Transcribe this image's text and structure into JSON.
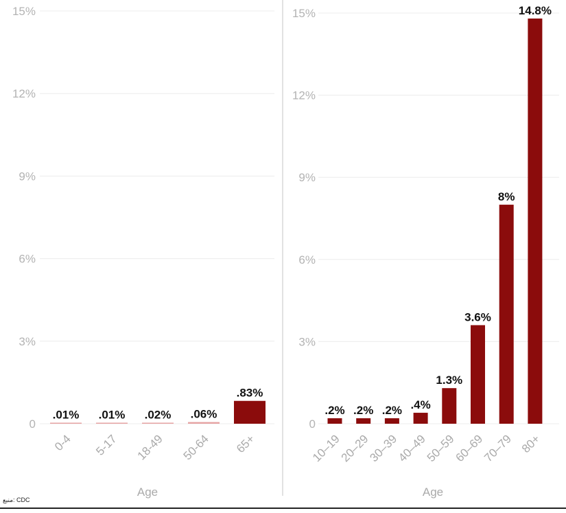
{
  "chart_data": [
    {
      "type": "bar",
      "categories": [
        "0-4",
        "5-17",
        "18-49",
        "50-64",
        "65+"
      ],
      "values": [
        0.01,
        0.01,
        0.02,
        0.06,
        0.83
      ],
      "value_labels": [
        ".01%",
        ".01%",
        ".02%",
        ".06%",
        ".83%"
      ],
      "y_ticks": [
        "0",
        "3%",
        "6%",
        "9%",
        "12%",
        "15%"
      ],
      "ylim": [
        0,
        15
      ],
      "xlabel": "Age",
      "bar_color": "#8b0c0c"
    },
    {
      "type": "bar",
      "categories": [
        "10–19",
        "20–29",
        "30–39",
        "40–49",
        "50–59",
        "60–69",
        "70–79",
        "80+"
      ],
      "values": [
        0.2,
        0.2,
        0.2,
        0.4,
        1.3,
        3.6,
        8,
        14.8
      ],
      "value_labels": [
        ".2%",
        ".2%",
        ".2%",
        ".4%",
        "1.3%",
        "3.6%",
        "8%",
        "14.8%"
      ],
      "y_ticks": [
        "0",
        "3%",
        "6%",
        "9%",
        "12%",
        "15%"
      ],
      "ylim": [
        0,
        15
      ],
      "xlabel": "Age",
      "bar_color": "#8b0c0c"
    }
  ],
  "source_label": "منبع: CDC"
}
